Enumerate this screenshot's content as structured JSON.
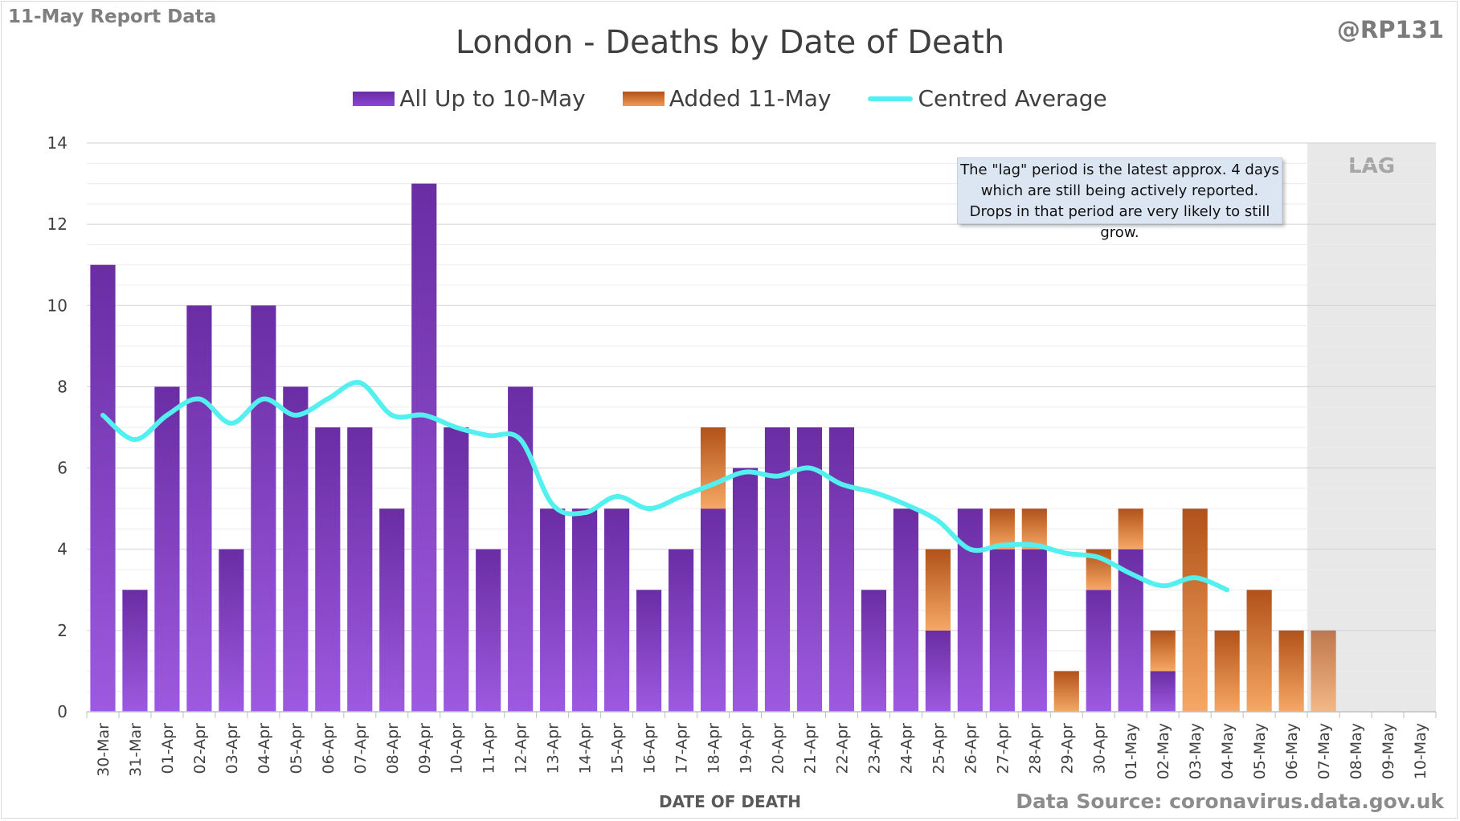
{
  "report_label": "11-May Report Data",
  "handle": "@RP131",
  "source": "Data Source: coronavirus.data.gov.uk",
  "note": "The \"lag\" period is the latest approx. 4 days which are still being actively reported.  Drops in that period are very likely to still grow.",
  "lag_label": "LAG",
  "colors": {
    "purple_top": "#6a2da3",
    "purple_bottom": "#9d5ae0",
    "orange_top": "#b1521a",
    "orange_bottom": "#f6a865",
    "average_line": "#54f0f0",
    "lag_shade": "#e8e8e8",
    "grid": "#d9d9d9"
  },
  "chart_data": {
    "type": "bar",
    "title": "London - Deaths by Date of Death",
    "xlabel": "DATE OF DEATH",
    "ylabel": "",
    "ylim": [
      0,
      14
    ],
    "yticks": [
      0,
      2,
      4,
      6,
      8,
      10,
      12,
      14
    ],
    "stacked": true,
    "legend_position": "top",
    "categories": [
      "30-Mar",
      "31-Mar",
      "01-Apr",
      "02-Apr",
      "03-Apr",
      "04-Apr",
      "05-Apr",
      "06-Apr",
      "07-Apr",
      "08-Apr",
      "09-Apr",
      "10-Apr",
      "11-Apr",
      "12-Apr",
      "13-Apr",
      "14-Apr",
      "15-Apr",
      "16-Apr",
      "17-Apr",
      "18-Apr",
      "19-Apr",
      "20-Apr",
      "21-Apr",
      "22-Apr",
      "23-Apr",
      "24-Apr",
      "25-Apr",
      "26-Apr",
      "27-Apr",
      "28-Apr",
      "29-Apr",
      "30-Apr",
      "01-May",
      "02-May",
      "03-May",
      "04-May",
      "05-May",
      "06-May",
      "07-May",
      "08-May",
      "09-May",
      "10-May"
    ],
    "series": [
      {
        "name": "All Up to 10-May",
        "kind": "bar",
        "values": [
          11,
          3,
          8,
          10,
          4,
          10,
          8,
          7,
          7,
          5,
          13,
          7,
          4,
          8,
          5,
          5,
          5,
          3,
          4,
          5,
          6,
          7,
          7,
          7,
          3,
          5,
          2,
          5,
          4,
          4,
          0,
          3,
          4,
          1,
          0,
          0,
          0,
          0,
          0,
          0,
          0,
          0
        ]
      },
      {
        "name": "Added 11-May",
        "kind": "bar",
        "values": [
          0,
          0,
          0,
          0,
          0,
          0,
          0,
          0,
          0,
          0,
          0,
          0,
          0,
          0,
          0,
          0,
          0,
          0,
          0,
          2,
          0,
          0,
          0,
          0,
          0,
          0,
          2,
          0,
          1,
          1,
          1,
          1,
          1,
          1,
          5,
          2,
          3,
          2,
          2,
          0,
          0,
          0
        ]
      },
      {
        "name": "Centred Average",
        "kind": "line",
        "values": [
          7.3,
          6.7,
          7.3,
          7.7,
          7.1,
          7.7,
          7.3,
          7.7,
          8.1,
          7.3,
          7.3,
          7.0,
          6.8,
          6.7,
          5.1,
          4.9,
          5.3,
          5.0,
          5.3,
          5.6,
          5.9,
          5.8,
          6.0,
          5.6,
          5.4,
          5.1,
          4.7,
          4.0,
          4.1,
          4.1,
          3.9,
          3.8,
          3.4,
          3.1,
          3.3,
          3.0,
          null,
          null,
          null,
          null,
          null,
          null
        ]
      }
    ],
    "lag_start_category": "07-May"
  }
}
